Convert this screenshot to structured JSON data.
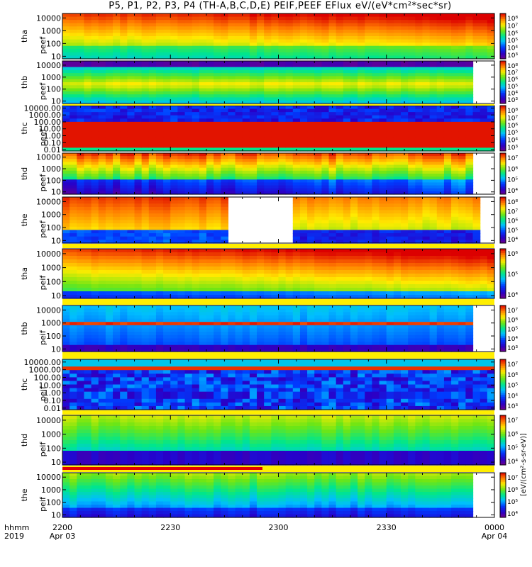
{
  "title": "P5, P1, P2, P3, P4 (TH-A,B,C,D,E) PEIF,PEEF EFlux eV/(eV*cm²*sec*sr)",
  "time_axis": {
    "row_label_1": "hhmm",
    "row_label_2": "2019",
    "ticks": [
      {
        "label": "2200",
        "date": "Apr 03",
        "t": 0
      },
      {
        "label": "2230",
        "date": "",
        "t": 30
      },
      {
        "label": "2300",
        "date": "",
        "t": 60
      },
      {
        "label": "2330",
        "date": "",
        "t": 90
      },
      {
        "label": "0000",
        "date": "Apr 04",
        "t": 120
      }
    ]
  },
  "colorbar_label": "[eV/(cm²-s-sr-eV)]",
  "chart_data": [
    {
      "type": "heatmap",
      "probe": "tha",
      "instrument": "peef",
      "ylabel": "tha\npeef",
      "yticks": [
        "10000",
        "1000",
        "100",
        "10"
      ],
      "ytick_values": [
        10000,
        1000,
        100,
        10
      ],
      "ylog": true,
      "cbar_ticks": [
        "10⁸",
        "10⁷",
        "10⁶",
        "10⁵",
        "10⁴",
        "10³"
      ],
      "data_end_min": 120,
      "gaps": [],
      "profile": "tha_peef"
    },
    {
      "type": "heatmap",
      "probe": "thb",
      "instrument": "peef",
      "ylabel": "thb\npeef",
      "yticks": [
        "10000",
        "1000",
        "100",
        "10"
      ],
      "ytick_values": [
        10000,
        1000,
        100,
        10
      ],
      "ylog": true,
      "cbar_ticks": [
        "10⁸",
        "10⁷",
        "10⁶",
        "10⁵",
        "10⁴",
        "10³"
      ],
      "data_end_min": 113,
      "gaps": [],
      "profile": "thb_peef"
    },
    {
      "type": "heatmap",
      "probe": "thc",
      "instrument": "peef",
      "ylabel": "thc\npeef",
      "yticks": [
        "10000.00",
        "1000.00",
        "100.00",
        "10.00",
        "1.00",
        "0.10",
        "0.01"
      ],
      "ytick_values": [
        10000,
        1000,
        100,
        10,
        1,
        0.1,
        0.01
      ],
      "ylog": true,
      "cbar_ticks": [
        "10⁸",
        "10⁷",
        "10⁶",
        "10⁵",
        "10⁴",
        "10³"
      ],
      "data_end_min": 120,
      "gaps": [],
      "profile": "thc_peef"
    },
    {
      "type": "heatmap",
      "probe": "thd",
      "instrument": "peef",
      "ylabel": "thd\npeef",
      "yticks": [
        "10000",
        "1000",
        "100",
        "10"
      ],
      "ytick_values": [
        10000,
        1000,
        100,
        10
      ],
      "ylog": true,
      "cbar_ticks": [
        "10⁷",
        "10⁶",
        "10⁵",
        "10⁴"
      ],
      "data_end_min": 114,
      "gaps": [],
      "profile": "thd_peef"
    },
    {
      "type": "heatmap",
      "probe": "the",
      "instrument": "peef",
      "ylabel": "the\npeef",
      "yticks": [
        "10000",
        "1000",
        "100",
        "10"
      ],
      "ytick_values": [
        10000,
        1000,
        100,
        10
      ],
      "ylog": true,
      "cbar_ticks": [
        "10⁸",
        "10⁷",
        "10⁶",
        "10⁵",
        "10⁴"
      ],
      "data_end_min": 116,
      "gaps": [
        [
          46,
          63
        ]
      ],
      "profile": "the_peef"
    },
    {
      "type": "heatmap",
      "probe": "tha",
      "instrument": "peif",
      "ylabel": "tha\npeif",
      "yticks": [
        "10000",
        "1000",
        "100",
        "10"
      ],
      "ytick_values": [
        10000,
        1000,
        100,
        10
      ],
      "ylog": true,
      "cbar_ticks": [
        "10⁶",
        "10⁵",
        "10⁴"
      ],
      "data_end_min": 120,
      "gaps": [],
      "profile": "tha_peif"
    },
    {
      "type": "heatmap",
      "probe": "thb",
      "instrument": "peif",
      "ylabel": "thb\npeif",
      "yticks": [
        "10000",
        "1000",
        "100",
        "10"
      ],
      "ytick_values": [
        10000,
        1000,
        100,
        10
      ],
      "ylog": true,
      "cbar_ticks": [
        "10⁷",
        "10⁶",
        "10⁵",
        "10⁴",
        "10³"
      ],
      "data_end_min": 113,
      "gaps": [],
      "profile": "thb_peif"
    },
    {
      "type": "heatmap",
      "probe": "thc",
      "instrument": "peif",
      "ylabel": "thc\npeif",
      "yticks": [
        "10000.00",
        "1000.00",
        "100.00",
        "10.00",
        "1.00",
        "0.10",
        "0.01"
      ],
      "ytick_values": [
        10000,
        1000,
        100,
        10,
        1,
        0.1,
        0.01
      ],
      "ylog": true,
      "cbar_ticks": [
        "10⁷",
        "10⁶",
        "10⁵",
        "10⁴",
        "10³"
      ],
      "data_end_min": 120,
      "gaps": [],
      "profile": "thc_peif"
    },
    {
      "type": "heatmap",
      "probe": "thd",
      "instrument": "peif",
      "ylabel": "thd\npeif",
      "yticks": [
        "10000",
        "1000",
        "100",
        "10"
      ],
      "ytick_values": [
        10000,
        1000,
        100,
        10
      ],
      "ylog": true,
      "cbar_ticks": [
        "10⁷",
        "10⁶",
        "10⁵",
        "10⁴"
      ],
      "data_end_min": 120,
      "gaps": [],
      "profile": "thd_peif"
    },
    {
      "type": "heatmap",
      "probe": "the",
      "instrument": "peif",
      "ylabel": "the\npeif",
      "yticks": [
        "10000",
        "1000",
        "100",
        "10"
      ],
      "ytick_values": [
        10000,
        1000,
        100,
        10
      ],
      "ylog": true,
      "cbar_ticks": [
        "10⁷",
        "10⁶",
        "10⁵",
        "10⁴"
      ],
      "data_end_min": 114,
      "gaps": [],
      "profile": "the_peif"
    }
  ]
}
